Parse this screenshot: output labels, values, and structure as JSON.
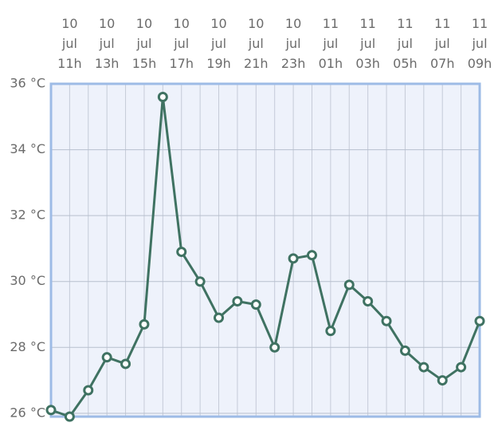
{
  "chart_data": {
    "type": "line",
    "categories": [
      null,
      [
        "10",
        "jul",
        "11h"
      ],
      null,
      [
        "10",
        "jul",
        "13h"
      ],
      null,
      [
        "10",
        "jul",
        "15h"
      ],
      null,
      [
        "10",
        "jul",
        "17h"
      ],
      null,
      [
        "10",
        "jul",
        "19h"
      ],
      null,
      [
        "10",
        "jul",
        "21h"
      ],
      null,
      [
        "10",
        "jul",
        "23h"
      ],
      null,
      [
        "11",
        "jul",
        "01h"
      ],
      null,
      [
        "11",
        "jul",
        "03h"
      ],
      null,
      [
        "11",
        "jul",
        "05h"
      ],
      null,
      [
        "11",
        "jul",
        "07h"
      ],
      null,
      [
        "11",
        "jul",
        "09h"
      ]
    ],
    "series": [
      {
        "color": "#3f7262",
        "values": [
          26.1,
          25.9,
          26.7,
          27.7,
          27.5,
          28.7,
          35.6,
          30.9,
          30.0,
          28.9,
          29.4,
          29.3,
          28.0,
          30.7,
          30.8,
          28.5,
          29.9,
          29.4,
          28.8,
          27.9,
          27.4,
          27.0,
          27.4,
          28.8
        ]
      }
    ],
    "ylim": [
      25.9,
      36
    ],
    "yticks": [
      {
        "value": 26,
        "label": "26 °C"
      },
      {
        "value": 28,
        "label": "28 °C"
      },
      {
        "value": 30,
        "label": "30 °C"
      },
      {
        "value": 32,
        "label": "32 °C"
      },
      {
        "value": 34,
        "label": "34 °C"
      },
      {
        "value": 36,
        "label": "36 °C"
      }
    ],
    "grid": true
  }
}
